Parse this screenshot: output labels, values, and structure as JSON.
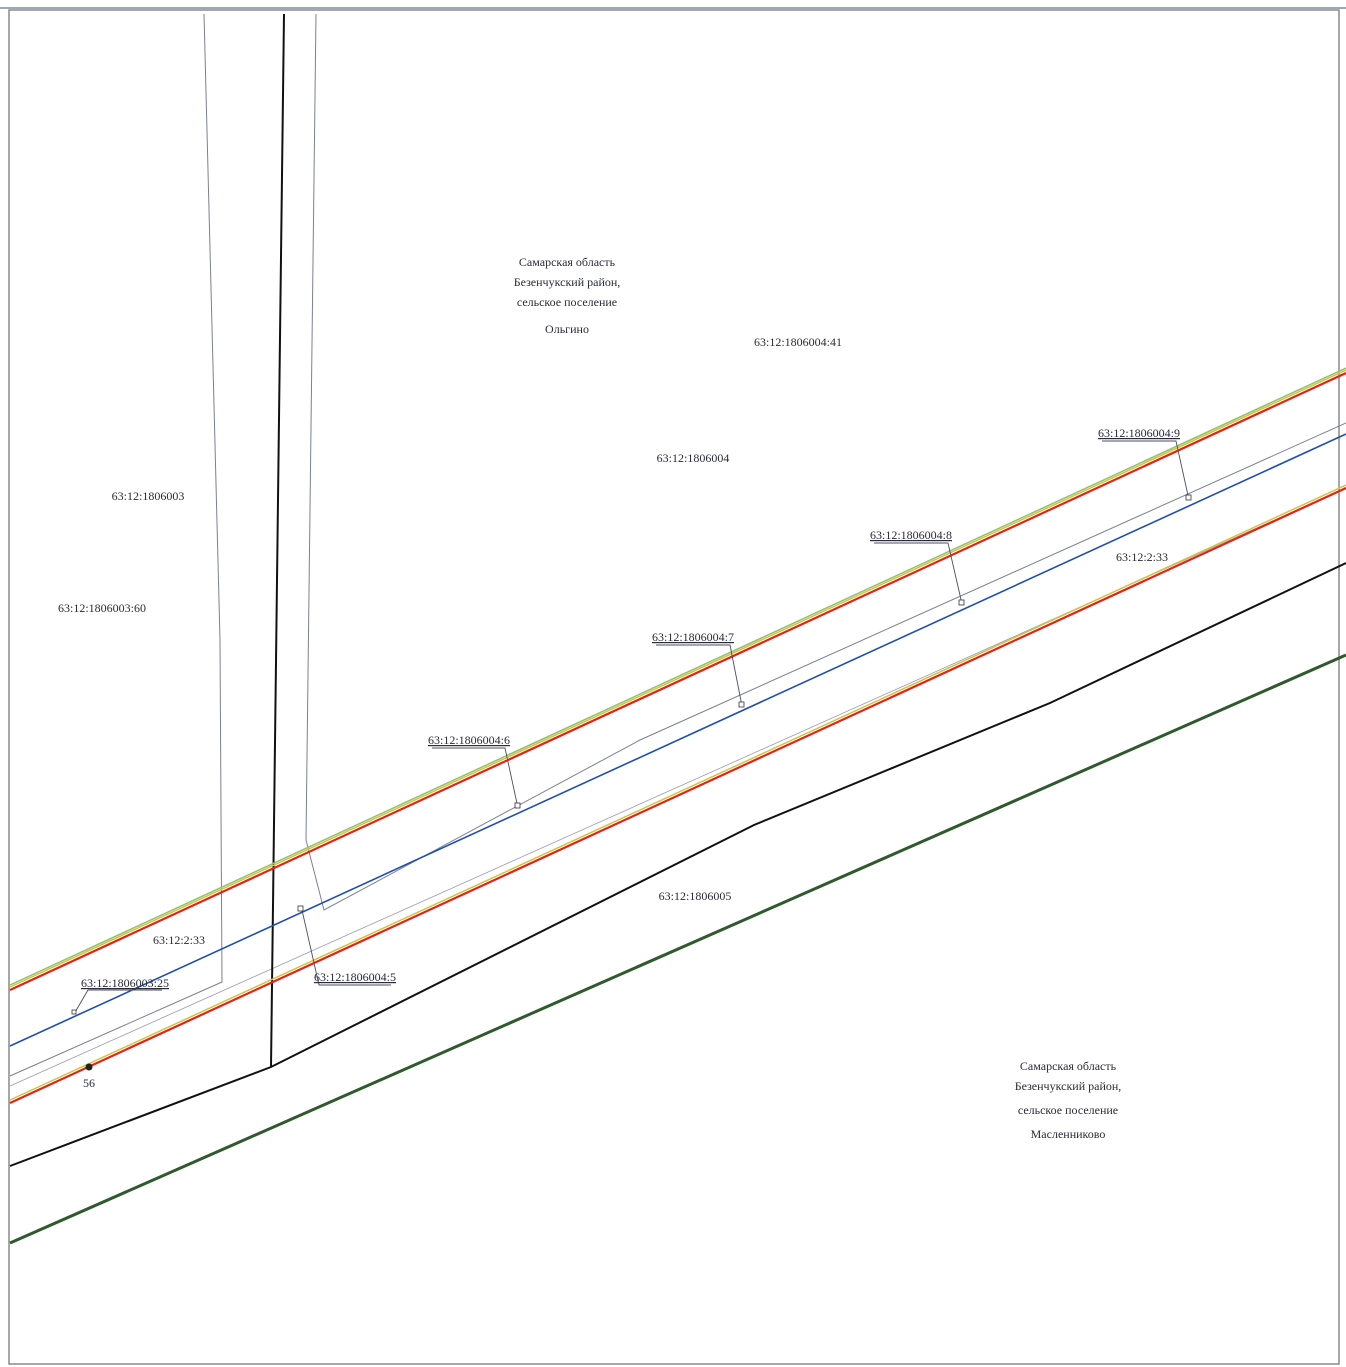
{
  "map": {
    "regions": {
      "olgino": [
        "Самарская область",
        "Безенчукский район,",
        "сельское поселение",
        "Ольгино"
      ],
      "maslennikovo": [
        "Самарская область",
        "Безенчукский район,",
        "сельское поселение",
        "Масленниково"
      ]
    },
    "parcels": {
      "p_1806004_41": "63:12:1806004:41",
      "q_1806004": "63:12:1806004",
      "q_1806003": "63:12:1806003",
      "p_1806003_60": "63:12:1806003:60",
      "p_2_33_right": "63:12:2:33",
      "p_2_33_left": "63:12:2:33",
      "q_1806005": "63:12:1806005"
    },
    "callouts": {
      "c9": "63:12:1806004:9",
      "c8": "63:12:1806004:8",
      "c7": "63:12:1806004:7",
      "c6": "63:12:1806004:6",
      "c5": "63:12:1806004:5",
      "c25": "63:12:1806003:25"
    },
    "point": {
      "label": "56"
    },
    "colors": {
      "boundary_red": "#e0241c",
      "yellow_edge": "#d8c23a",
      "green_edge": "#8fc46a",
      "axis_blue": "#1f4fb0",
      "quarter_black": "#111111",
      "thin_gray": "#6b6f80",
      "dark_green": "#2e5a2e"
    }
  }
}
